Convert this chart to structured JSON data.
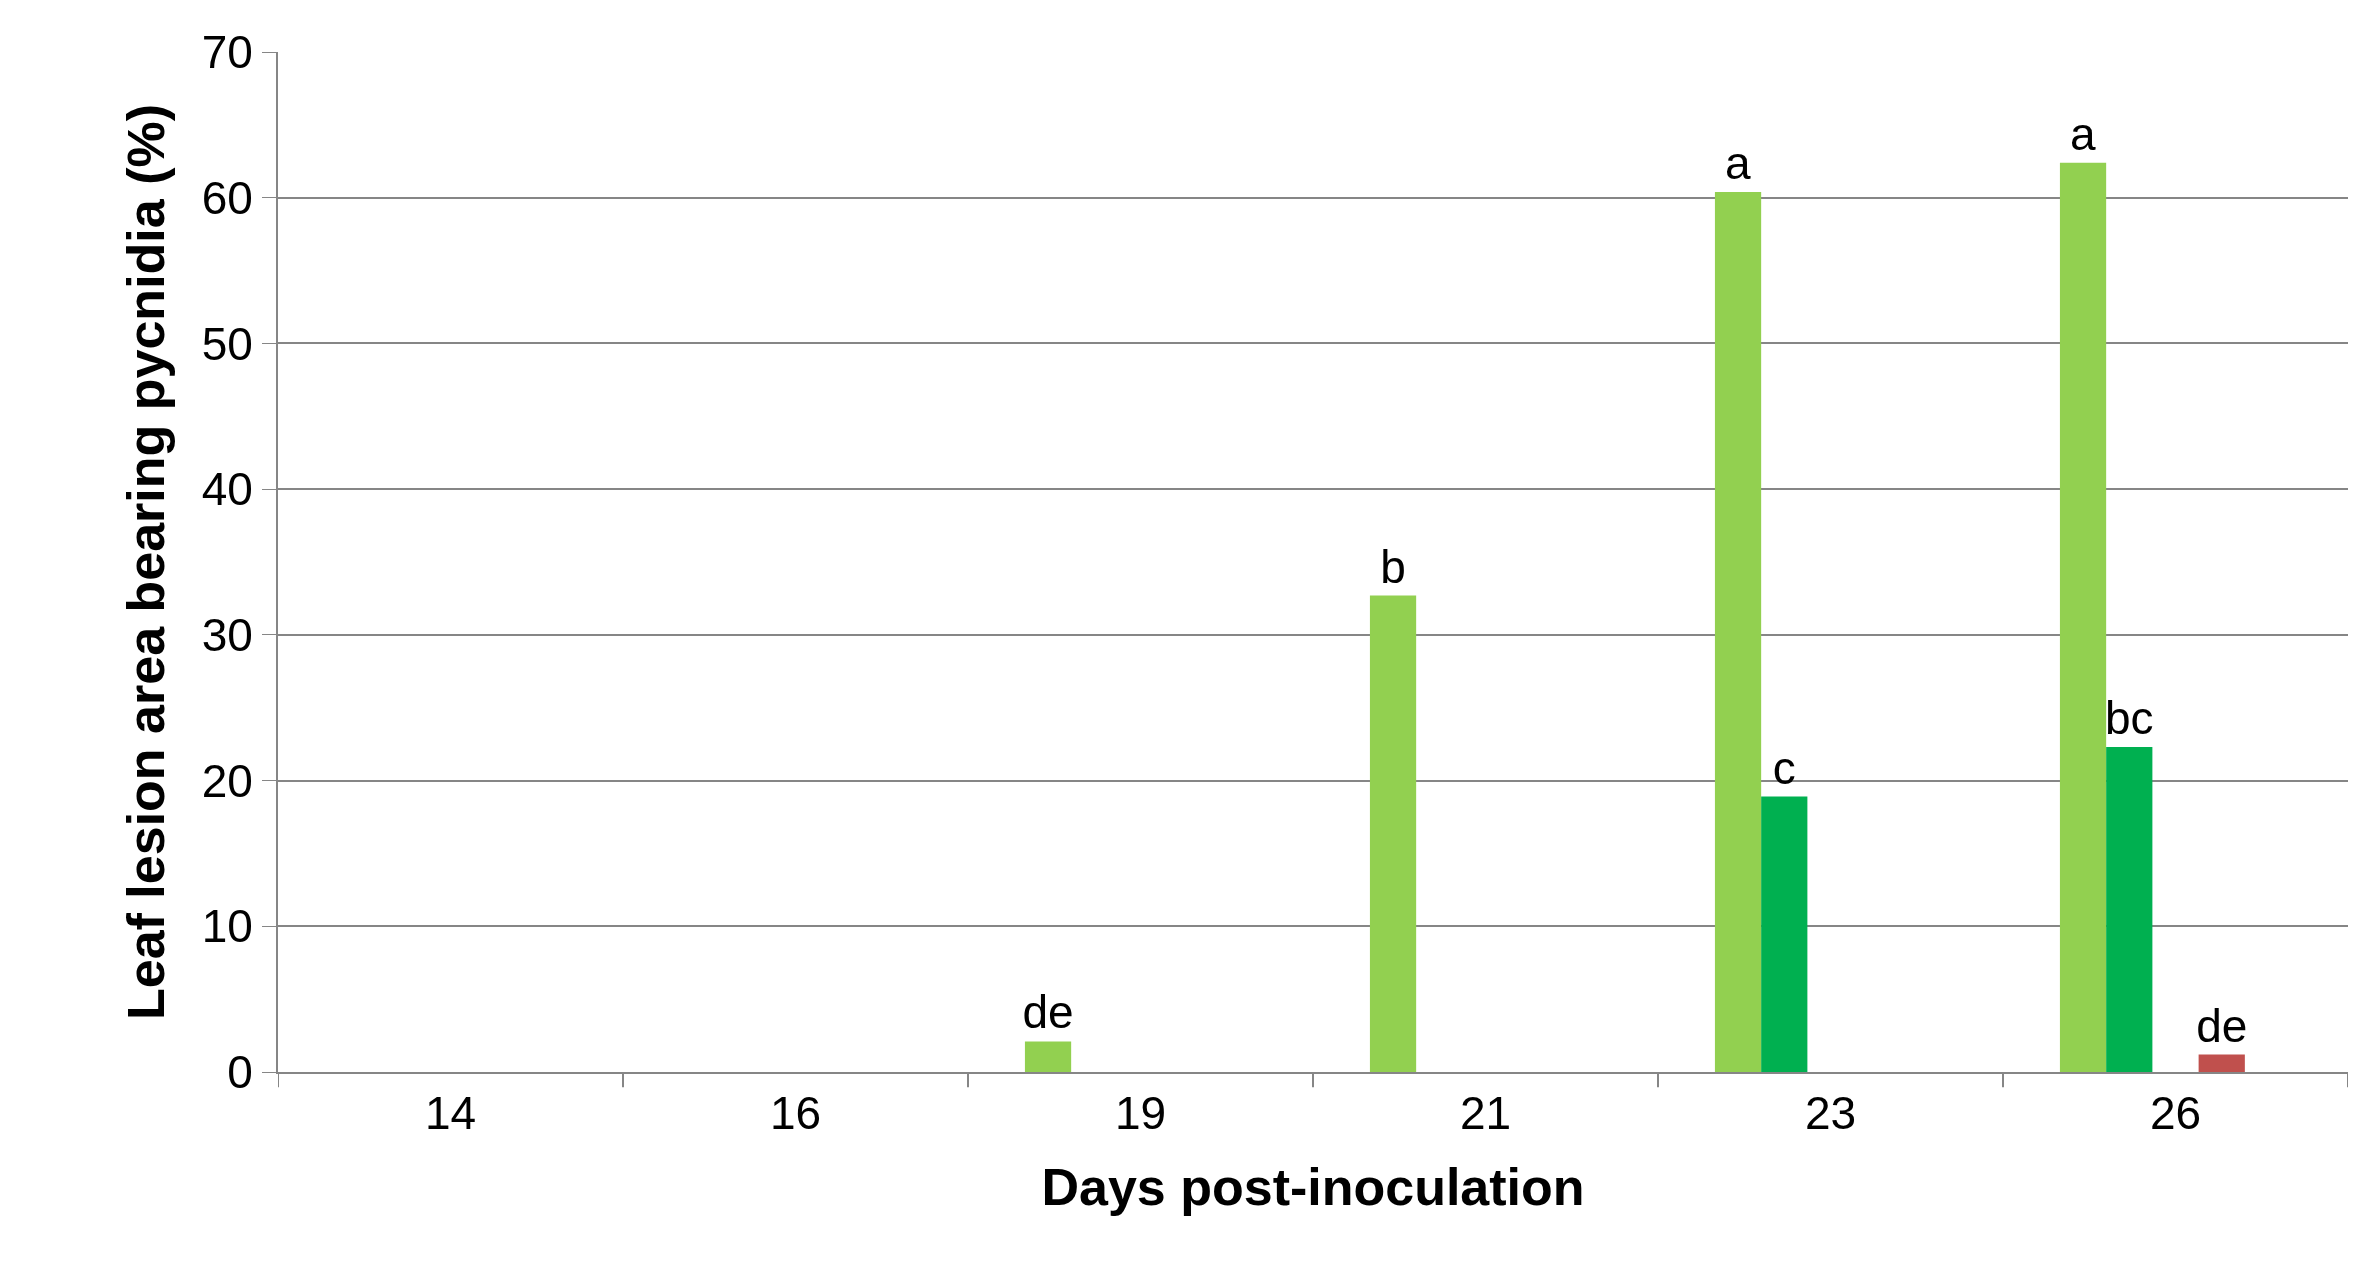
{
  "chart_data": {
    "type": "bar",
    "xlabel": "Days post-inoculation",
    "ylabel": "Leaf lesion area bearing pycnidia (%)",
    "categories": [
      "14",
      "16",
      "19",
      "21",
      "23",
      "26"
    ],
    "series": [
      {
        "color": "#92d050",
        "values": [
          0,
          0,
          2.1,
          32.7,
          60.4,
          62.4
        ],
        "value_labels": [
          null,
          null,
          "de",
          "b",
          "a",
          "a"
        ]
      },
      {
        "color": "#00b050",
        "values": [
          0,
          0,
          0,
          0,
          18.9,
          22.3
        ],
        "value_labels": [
          null,
          null,
          null,
          null,
          "c",
          "bc"
        ]
      },
      {
        "values": [
          null,
          null,
          null,
          null,
          null,
          null
        ]
      },
      {
        "color": "#c0504d",
        "values": [
          0,
          0,
          0,
          0,
          0,
          1.2
        ],
        "value_labels": [
          null,
          null,
          null,
          null,
          null,
          "de"
        ]
      },
      {
        "values": [
          null,
          null,
          null,
          null,
          null,
          null
        ]
      }
    ],
    "ylim": [
      0,
      70
    ],
    "yticks": [
      0,
      10,
      20,
      30,
      40,
      50,
      60,
      70
    ],
    "grid": "y"
  }
}
